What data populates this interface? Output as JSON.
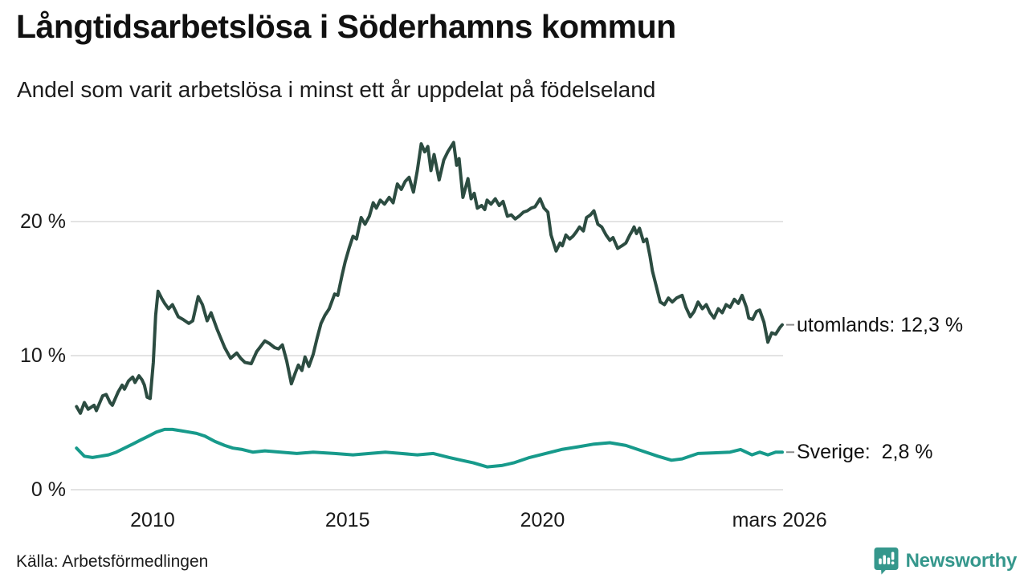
{
  "header": {
    "title": "Långtidsarbetslösa i Söderhamns kommun",
    "subtitle": "Andel som varit arbetslösa i minst ett år uppdelat på födelseland"
  },
  "footer": {
    "source": "Källa: Arbetsförmedlingen",
    "brand": "Newsworthy"
  },
  "colors": {
    "utomlands_line": "#2c4c41",
    "sverige_line": "#179a8b",
    "gridline": "#e3e3e3",
    "leader_dash": "#8c8c8c",
    "brand_teal": "#35978c"
  },
  "chart_data": {
    "type": "line",
    "title": "Långtidsarbetslösa i Söderhamns kommun",
    "subtitle": "Andel som varit arbetslösa i minst ett år uppdelat på födelseland",
    "grid": true,
    "legend_position": "end-of-line labels, right side",
    "x_axis": {
      "range": [
        2007.9,
        2026.17
      ],
      "ticks": [
        {
          "label": "2010",
          "year": 2010
        },
        {
          "label": "2015",
          "year": 2015
        },
        {
          "label": "2020",
          "year": 2020
        },
        {
          "label": "mars 2026",
          "year": 2026.08
        }
      ]
    },
    "y_axis": {
      "unit": "%",
      "range": [
        0,
        27
      ],
      "ticks": [
        {
          "label": "0 %",
          "value": 0
        },
        {
          "label": "10 %",
          "value": 10
        },
        {
          "label": "20 %",
          "value": 20
        }
      ]
    },
    "series": [
      {
        "name": "utomlands",
        "color": "#2c4c41",
        "end_label": "utomlands: 12,3 %",
        "last_value": 12.3,
        "points": [
          [
            2008.05,
            6.2
          ],
          [
            2008.15,
            5.7
          ],
          [
            2008.25,
            6.5
          ],
          [
            2008.35,
            6.0
          ],
          [
            2008.5,
            6.3
          ],
          [
            2008.56,
            5.9
          ],
          [
            2008.72,
            7.0
          ],
          [
            2008.81,
            7.1
          ],
          [
            2008.91,
            6.5
          ],
          [
            2008.97,
            6.3
          ],
          [
            2009.12,
            7.3
          ],
          [
            2009.22,
            7.8
          ],
          [
            2009.28,
            7.5
          ],
          [
            2009.38,
            8.1
          ],
          [
            2009.49,
            8.4
          ],
          [
            2009.55,
            8.0
          ],
          [
            2009.65,
            8.5
          ],
          [
            2009.73,
            8.2
          ],
          [
            2009.79,
            7.8
          ],
          [
            2009.86,
            6.9
          ],
          [
            2009.94,
            6.8
          ],
          [
            2010.02,
            9.5
          ],
          [
            2010.08,
            13.0
          ],
          [
            2010.14,
            14.8
          ],
          [
            2010.23,
            14.3
          ],
          [
            2010.31,
            13.9
          ],
          [
            2010.41,
            13.5
          ],
          [
            2010.51,
            13.8
          ],
          [
            2010.66,
            12.9
          ],
          [
            2010.78,
            12.7
          ],
          [
            2010.93,
            12.4
          ],
          [
            2011.03,
            12.6
          ],
          [
            2011.17,
            14.4
          ],
          [
            2011.28,
            13.8
          ],
          [
            2011.4,
            12.6
          ],
          [
            2011.5,
            13.2
          ],
          [
            2011.65,
            12.0
          ],
          [
            2011.85,
            10.6
          ],
          [
            2012.0,
            9.8
          ],
          [
            2012.16,
            10.2
          ],
          [
            2012.26,
            9.8
          ],
          [
            2012.37,
            9.5
          ],
          [
            2012.53,
            9.4
          ],
          [
            2012.67,
            10.3
          ],
          [
            2012.88,
            11.1
          ],
          [
            2013.0,
            10.9
          ],
          [
            2013.13,
            10.6
          ],
          [
            2013.23,
            10.5
          ],
          [
            2013.33,
            10.8
          ],
          [
            2013.44,
            9.6
          ],
          [
            2013.56,
            7.9
          ],
          [
            2013.66,
            8.7
          ],
          [
            2013.74,
            9.3
          ],
          [
            2013.83,
            8.9
          ],
          [
            2013.91,
            9.9
          ],
          [
            2014.01,
            9.2
          ],
          [
            2014.12,
            10.1
          ],
          [
            2014.22,
            11.3
          ],
          [
            2014.32,
            12.4
          ],
          [
            2014.42,
            13.0
          ],
          [
            2014.53,
            13.5
          ],
          [
            2014.67,
            14.6
          ],
          [
            2014.75,
            14.5
          ],
          [
            2014.86,
            16.0
          ],
          [
            2014.94,
            17.0
          ],
          [
            2015.04,
            18.0
          ],
          [
            2015.14,
            18.9
          ],
          [
            2015.23,
            18.7
          ],
          [
            2015.35,
            20.3
          ],
          [
            2015.45,
            19.8
          ],
          [
            2015.56,
            20.4
          ],
          [
            2015.66,
            21.4
          ],
          [
            2015.74,
            21.0
          ],
          [
            2015.84,
            21.6
          ],
          [
            2015.95,
            21.3
          ],
          [
            2016.07,
            21.8
          ],
          [
            2016.17,
            21.4
          ],
          [
            2016.28,
            22.8
          ],
          [
            2016.38,
            22.4
          ],
          [
            2016.48,
            23.0
          ],
          [
            2016.58,
            23.3
          ],
          [
            2016.69,
            22.2
          ],
          [
            2016.79,
            23.8
          ],
          [
            2016.89,
            25.8
          ],
          [
            2016.98,
            25.2
          ],
          [
            2017.06,
            25.6
          ],
          [
            2017.14,
            23.8
          ],
          [
            2017.22,
            25.0
          ],
          [
            2017.35,
            23.1
          ],
          [
            2017.47,
            24.6
          ],
          [
            2017.57,
            25.2
          ],
          [
            2017.72,
            25.9
          ],
          [
            2017.8,
            24.2
          ],
          [
            2017.86,
            24.7
          ],
          [
            2017.96,
            21.8
          ],
          [
            2018.09,
            23.2
          ],
          [
            2018.17,
            21.7
          ],
          [
            2018.25,
            22.1
          ],
          [
            2018.33,
            21.0
          ],
          [
            2018.44,
            21.2
          ],
          [
            2018.52,
            20.9
          ],
          [
            2018.58,
            21.6
          ],
          [
            2018.68,
            21.3
          ],
          [
            2018.79,
            21.7
          ],
          [
            2018.89,
            21.2
          ],
          [
            2018.99,
            21.5
          ],
          [
            2019.1,
            20.4
          ],
          [
            2019.2,
            20.5
          ],
          [
            2019.3,
            20.2
          ],
          [
            2019.4,
            20.4
          ],
          [
            2019.51,
            20.7
          ],
          [
            2019.61,
            20.8
          ],
          [
            2019.71,
            21.0
          ],
          [
            2019.81,
            21.1
          ],
          [
            2019.94,
            21.7
          ],
          [
            2020.04,
            21.0
          ],
          [
            2020.14,
            20.7
          ],
          [
            2020.22,
            19.0
          ],
          [
            2020.35,
            17.8
          ],
          [
            2020.45,
            18.4
          ],
          [
            2020.51,
            18.2
          ],
          [
            2020.6,
            19.0
          ],
          [
            2020.7,
            18.7
          ],
          [
            2020.78,
            18.9
          ],
          [
            2020.86,
            19.2
          ],
          [
            2020.95,
            19.6
          ],
          [
            2021.05,
            19.3
          ],
          [
            2021.13,
            20.3
          ],
          [
            2021.23,
            20.5
          ],
          [
            2021.32,
            20.8
          ],
          [
            2021.42,
            19.8
          ],
          [
            2021.52,
            19.6
          ],
          [
            2021.63,
            19.0
          ],
          [
            2021.73,
            18.6
          ],
          [
            2021.81,
            18.8
          ],
          [
            2021.93,
            18.0
          ],
          [
            2022.04,
            18.2
          ],
          [
            2022.14,
            18.4
          ],
          [
            2022.24,
            19.0
          ],
          [
            2022.3,
            19.3
          ],
          [
            2022.35,
            19.6
          ],
          [
            2022.41,
            19.1
          ],
          [
            2022.49,
            19.5
          ],
          [
            2022.59,
            18.5
          ],
          [
            2022.67,
            18.7
          ],
          [
            2022.76,
            17.4
          ],
          [
            2022.82,
            16.3
          ],
          [
            2022.9,
            15.4
          ],
          [
            2023.02,
            14.0
          ],
          [
            2023.13,
            13.8
          ],
          [
            2023.23,
            14.3
          ],
          [
            2023.33,
            14.0
          ],
          [
            2023.44,
            14.3
          ],
          [
            2023.58,
            14.5
          ],
          [
            2023.68,
            13.6
          ],
          [
            2023.79,
            12.9
          ],
          [
            2023.89,
            13.3
          ],
          [
            2023.99,
            14.0
          ],
          [
            2024.1,
            13.5
          ],
          [
            2024.2,
            13.8
          ],
          [
            2024.3,
            13.2
          ],
          [
            2024.4,
            12.8
          ],
          [
            2024.51,
            13.5
          ],
          [
            2024.61,
            13.2
          ],
          [
            2024.71,
            13.8
          ],
          [
            2024.81,
            13.6
          ],
          [
            2024.92,
            14.2
          ],
          [
            2025.02,
            13.9
          ],
          [
            2025.12,
            14.5
          ],
          [
            2025.23,
            13.6
          ],
          [
            2025.29,
            12.8
          ],
          [
            2025.39,
            12.7
          ],
          [
            2025.49,
            13.3
          ],
          [
            2025.57,
            13.4
          ],
          [
            2025.68,
            12.5
          ],
          [
            2025.78,
            11.0
          ],
          [
            2025.88,
            11.7
          ],
          [
            2025.98,
            11.6
          ],
          [
            2026.09,
            12.1
          ],
          [
            2026.15,
            12.3
          ]
        ]
      },
      {
        "name": "Sverige",
        "color": "#179a8b",
        "end_label": "Sverige:  2,8 %",
        "last_value": 2.8,
        "points": [
          [
            2008.05,
            3.1
          ],
          [
            2008.25,
            2.5
          ],
          [
            2008.46,
            2.4
          ],
          [
            2008.66,
            2.5
          ],
          [
            2008.87,
            2.6
          ],
          [
            2009.07,
            2.8
          ],
          [
            2009.28,
            3.1
          ],
          [
            2009.49,
            3.4
          ],
          [
            2009.69,
            3.7
          ],
          [
            2009.9,
            4.0
          ],
          [
            2010.1,
            4.3
          ],
          [
            2010.31,
            4.5
          ],
          [
            2010.51,
            4.5
          ],
          [
            2010.72,
            4.4
          ],
          [
            2010.93,
            4.3
          ],
          [
            2011.13,
            4.2
          ],
          [
            2011.34,
            4.0
          ],
          [
            2011.6,
            3.6
          ],
          [
            2011.85,
            3.3
          ],
          [
            2012.06,
            3.1
          ],
          [
            2012.3,
            3.0
          ],
          [
            2012.57,
            2.8
          ],
          [
            2012.88,
            2.9
          ],
          [
            2013.29,
            2.8
          ],
          [
            2013.7,
            2.7
          ],
          [
            2014.12,
            2.8
          ],
          [
            2014.67,
            2.7
          ],
          [
            2015.14,
            2.6
          ],
          [
            2015.56,
            2.7
          ],
          [
            2015.97,
            2.8
          ],
          [
            2016.38,
            2.7
          ],
          [
            2016.79,
            2.6
          ],
          [
            2017.2,
            2.7
          ],
          [
            2017.61,
            2.4
          ],
          [
            2017.92,
            2.2
          ],
          [
            2018.23,
            2.0
          ],
          [
            2018.58,
            1.7
          ],
          [
            2018.95,
            1.8
          ],
          [
            2019.26,
            2.0
          ],
          [
            2019.67,
            2.4
          ],
          [
            2020.08,
            2.7
          ],
          [
            2020.49,
            3.0
          ],
          [
            2020.91,
            3.2
          ],
          [
            2021.32,
            3.4
          ],
          [
            2021.73,
            3.5
          ],
          [
            2022.14,
            3.3
          ],
          [
            2022.55,
            2.9
          ],
          [
            2022.96,
            2.5
          ],
          [
            2023.31,
            2.2
          ],
          [
            2023.58,
            2.3
          ],
          [
            2023.99,
            2.7
          ],
          [
            2024.4,
            2.75
          ],
          [
            2024.81,
            2.8
          ],
          [
            2025.08,
            3.0
          ],
          [
            2025.37,
            2.6
          ],
          [
            2025.57,
            2.8
          ],
          [
            2025.78,
            2.6
          ],
          [
            2025.98,
            2.8
          ],
          [
            2026.15,
            2.8
          ]
        ]
      }
    ]
  }
}
